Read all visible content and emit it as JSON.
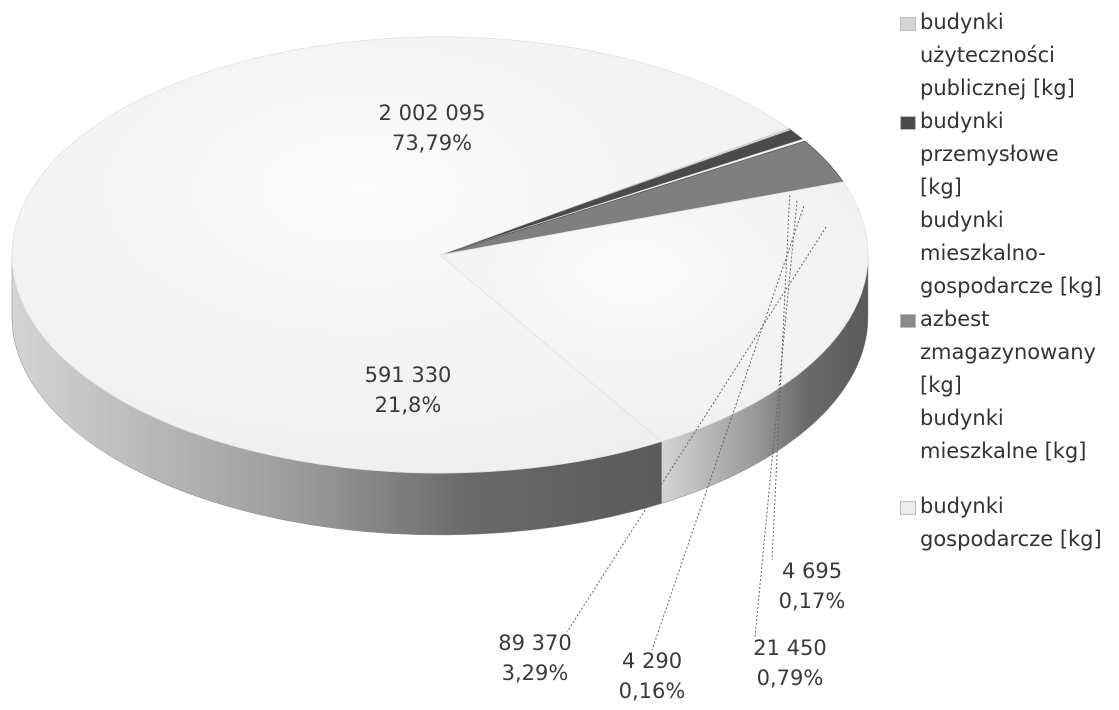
{
  "chart_data": {
    "type": "pie",
    "style": "3d",
    "categories": [
      "budynki użyteczności publicznej [kg]",
      "budynki przemysłowe [kg]",
      "budynki mieszkalno-gospodarcze [kg]",
      "azbest zmagazynowany [kg]",
      "budynki mieszkalne [kg]",
      "budynki gospodarcze [kg]"
    ],
    "values": [
      4695,
      21450,
      4290,
      89370,
      591330,
      2002095
    ],
    "labels": [
      {
        "value": "4 695",
        "percent": "0,17%"
      },
      {
        "value": "21 450",
        "percent": "0,79%"
      },
      {
        "value": "4 290",
        "percent": "0,16%"
      },
      {
        "value": "89 370",
        "percent": "3,29%"
      },
      {
        "value": "591 330",
        "percent": "21,8%"
      },
      {
        "value": "2 002 095",
        "percent": "73,79%"
      }
    ],
    "colors": [
      "#d6d6d6",
      "#4a4a4a",
      "#fbfbfb",
      "#7f7f7f",
      "#f6f6f6",
      "#f0f0f0"
    ],
    "legend_position": "right"
  },
  "legend": {
    "items": [
      {
        "lines": [
          "budynki",
          "użyteczności",
          "publicznej [kg]"
        ],
        "color": "#d6d6d6"
      },
      {
        "lines": [
          "budynki",
          "przemysłowe",
          "[kg]"
        ],
        "color": "#4a4a4a"
      },
      {
        "lines": [
          "budynki",
          "mieszkalno-",
          "gospodarcze [kg]"
        ],
        "color": "#ffffff"
      },
      {
        "lines": [
          "azbest",
          "zmagazynowany",
          "[kg]"
        ],
        "color": "#8a8a8a"
      },
      {
        "lines": [
          "budynki",
          "mieszkalne [kg]"
        ],
        "color": "#ffffff"
      },
      {
        "lines": [
          "budynki",
          "gospodarcze [kg]"
        ],
        "color": "#ececec"
      }
    ]
  }
}
